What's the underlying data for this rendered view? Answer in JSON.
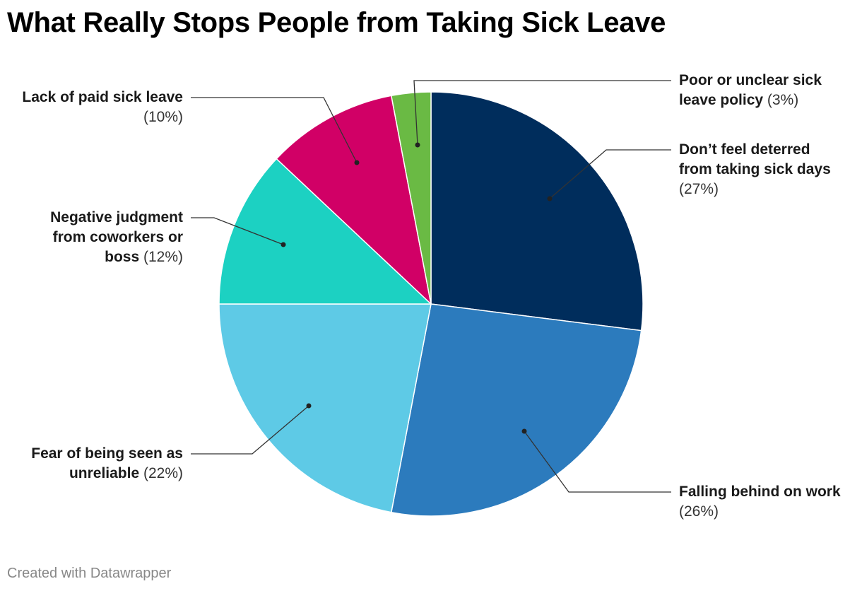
{
  "chart_data": {
    "type": "pie",
    "title": "What Really Stops People from Taking Sick Leave",
    "start": "12 o'clock",
    "direction": "clockwise",
    "slices": [
      {
        "label": "Don’t feel deterred from taking sick days",
        "value": 27,
        "display": "(27%)",
        "color": "#002d5c"
      },
      {
        "label": "Falling behind on work",
        "value": 26,
        "display": "(26%)",
        "color": "#2c7bbd"
      },
      {
        "label": "Fear of being seen as unreliable",
        "value": 22,
        "display": "(22%)",
        "color": "#5ecae6"
      },
      {
        "label": "Negative judgment from coworkers or boss",
        "value": 12,
        "display": "(12%)",
        "color": "#1cd1c2"
      },
      {
        "label": "Lack of paid sick leave",
        "value": 10,
        "display": "(10%)",
        "color": "#d10066"
      },
      {
        "label": "Poor or unclear sick leave policy",
        "value": 3,
        "display": "(3%)",
        "color": "#6aba44"
      }
    ]
  },
  "footer": {
    "credit": "Created with Datawrapper"
  }
}
